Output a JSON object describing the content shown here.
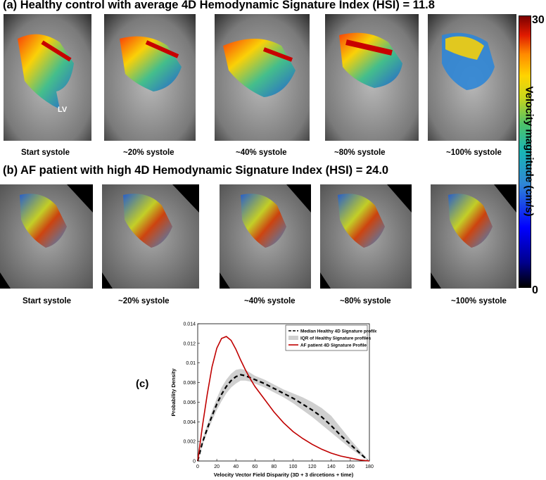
{
  "panel_a": {
    "title": "(a) Healthy control with average 4D Hemodynamic Signature Index (HSI) = 11.8",
    "frame_labels": [
      "Start systole",
      "~20% systole",
      "~40% systole",
      "~80% systole",
      "~100% systole"
    ],
    "annotation": "LV"
  },
  "panel_b": {
    "title": "(b) AF patient with high 4D Hemodynamic Signature Index (HSI) = 24.0",
    "frame_labels": [
      "Start systole",
      "~20% systole",
      "~40% systole",
      "~80% systole",
      "~100% systole"
    ]
  },
  "colorbar": {
    "title": "Velocity magnitude (cm/s)",
    "max_label": "30",
    "min_label": "0"
  },
  "panel_c": {
    "label": "(c)",
    "chart_data": {
      "type": "line",
      "xlabel": "Velocity Vector Field Disparity (3D + 3 dircetions + time)",
      "ylabel": "Probability Density",
      "xlim": [
        0,
        180
      ],
      "ylim": [
        0,
        0.014
      ],
      "xticks": [
        "0",
        "20",
        "40",
        "60",
        "80",
        "100",
        "120",
        "140",
        "160",
        "180"
      ],
      "yticks": [
        "0",
        "0.002",
        "0.004",
        "0.006",
        "0.008",
        "0.01",
        "0.012",
        "0.014"
      ],
      "legend": [
        "Median Healthy 4D Signature profile",
        "IQR of Healthy Signature profiles",
        "AF patient 4D Signature Profile"
      ],
      "legend_position": "top-right",
      "series": [
        {
          "name": "Median Healthy 4D Signature profile",
          "style": "dashed",
          "color": "#000000",
          "x": [
            0,
            5,
            10,
            15,
            20,
            25,
            30,
            35,
            40,
            45,
            50,
            55,
            60,
            70,
            80,
            90,
            100,
            110,
            120,
            130,
            140,
            150,
            160,
            170,
            178
          ],
          "y": [
            0,
            0.0019,
            0.0033,
            0.0046,
            0.0058,
            0.0068,
            0.0076,
            0.0082,
            0.0086,
            0.0088,
            0.0087,
            0.0085,
            0.0083,
            0.0079,
            0.0074,
            0.0069,
            0.0064,
            0.0058,
            0.0052,
            0.0045,
            0.0036,
            0.0026,
            0.0017,
            0.0008,
            0.0001
          ]
        },
        {
          "name": "IQR of Healthy Signature profiles",
          "style": "band",
          "color": "#cfcfcf",
          "x": [
            0,
            5,
            10,
            15,
            20,
            25,
            30,
            35,
            40,
            45,
            50,
            55,
            60,
            70,
            80,
            90,
            100,
            110,
            120,
            130,
            140,
            150,
            160,
            170,
            178
          ],
          "lower": [
            0,
            0.0016,
            0.0029,
            0.0041,
            0.0052,
            0.0061,
            0.0069,
            0.0075,
            0.0079,
            0.0082,
            0.0082,
            0.0081,
            0.0079,
            0.0075,
            0.007,
            0.0065,
            0.0059,
            0.0052,
            0.0045,
            0.0037,
            0.0029,
            0.0021,
            0.0013,
            0.0006,
            0.0001
          ],
          "upper": [
            0,
            0.0022,
            0.0037,
            0.0051,
            0.0064,
            0.0075,
            0.0083,
            0.0089,
            0.0093,
            0.0094,
            0.0093,
            0.009,
            0.0087,
            0.0083,
            0.0078,
            0.0073,
            0.0069,
            0.0065,
            0.006,
            0.0054,
            0.0046,
            0.0034,
            0.0022,
            0.0011,
            0.0002
          ]
        },
        {
          "name": "AF patient 4D Signature Profile",
          "style": "solid",
          "color": "#c00000",
          "x": [
            0,
            5,
            10,
            15,
            20,
            25,
            30,
            35,
            40,
            45,
            50,
            55,
            60,
            70,
            80,
            90,
            100,
            110,
            120,
            130,
            140,
            150,
            160,
            170,
            180
          ],
          "y": [
            0,
            0.0036,
            0.0068,
            0.0096,
            0.0115,
            0.0125,
            0.0127,
            0.0123,
            0.0114,
            0.0103,
            0.0093,
            0.0084,
            0.0076,
            0.0063,
            0.005,
            0.0039,
            0.003,
            0.0023,
            0.0017,
            0.0012,
            0.0008,
            0.0005,
            0.0003,
            0.0001,
            0
          ]
        }
      ]
    }
  }
}
